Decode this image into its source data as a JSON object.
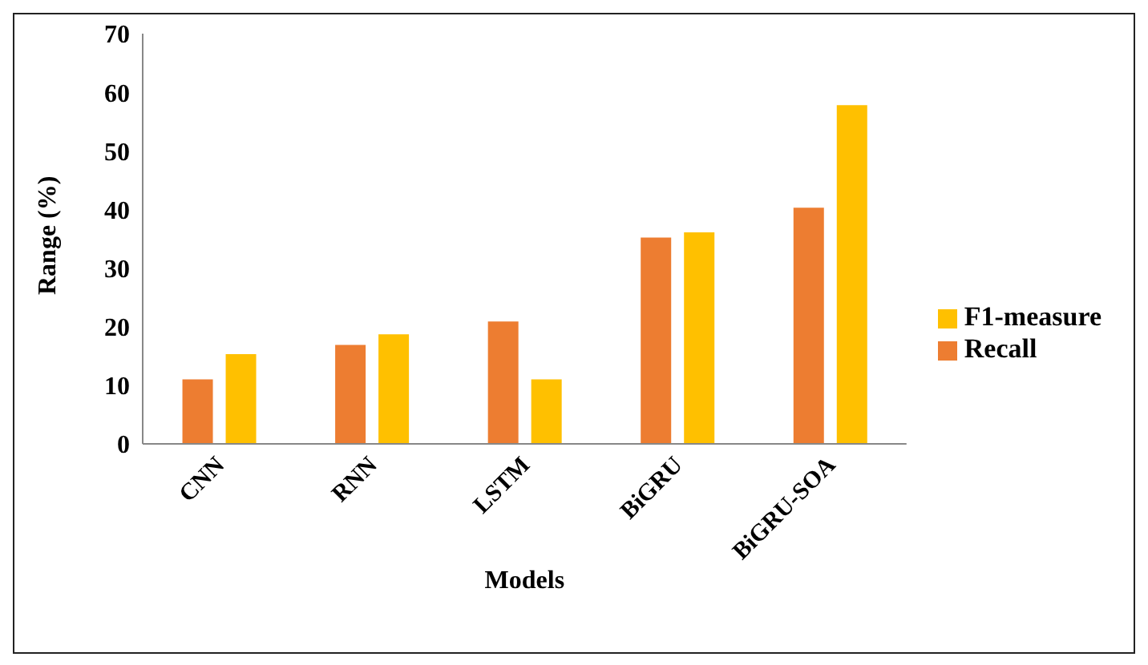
{
  "chart_data": {
    "type": "bar",
    "xlabel": "Models",
    "ylabel": "Range (%)",
    "categories": [
      "CNN",
      "RNN",
      "LSTM",
      "BiGRU",
      "BiGRU-SOA"
    ],
    "series": [
      {
        "name": "Recall",
        "color": "#ed7d31",
        "values": [
          11.0,
          16.9,
          20.9,
          35.2,
          40.3
        ]
      },
      {
        "name": "F1-measure",
        "color": "#ffc000",
        "values": [
          15.3,
          18.7,
          11.0,
          36.1,
          57.8
        ]
      }
    ],
    "ylim": [
      0,
      70
    ],
    "yticks": [
      0,
      10,
      20,
      30,
      40,
      50,
      60,
      70
    ],
    "grid": false,
    "legend": "right"
  }
}
